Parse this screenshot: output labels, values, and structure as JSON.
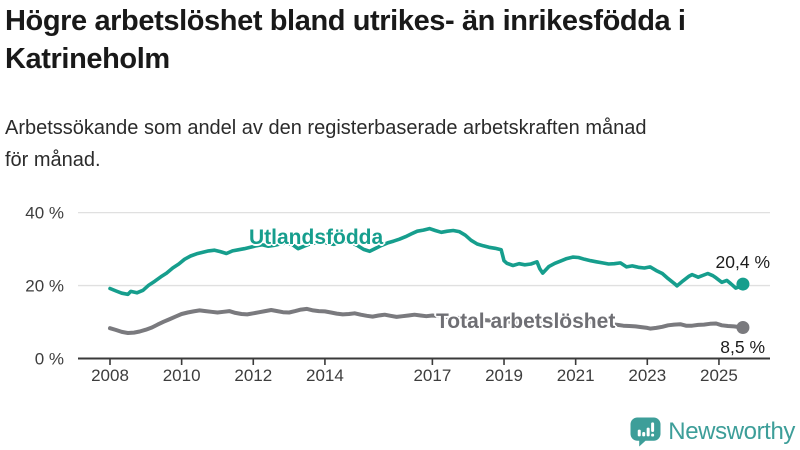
{
  "header": {
    "title": "Högre arbetslöshet bland utrikes- än inrikesfödda i Katrineholm",
    "subtitle": "Arbetssökande som andel av den registerbaserade arbetskraften månad för månad."
  },
  "footer": {
    "brand": "Newsworthy",
    "brand_color": "#3d9e99",
    "logo_icon": "newsworthy-chart-bubble-icon"
  },
  "chart_data": {
    "type": "line",
    "title": "Högre arbetslöshet bland utrikes- än inrikesfödda i Katrineholm",
    "xlabel": "",
    "ylabel": "",
    "grid": "horizontal-only",
    "xlim": [
      2008,
      2025.7
    ],
    "ylim": [
      0,
      46
    ],
    "x_ticks": [
      {
        "year": 2008,
        "label": "2008"
      },
      {
        "year": 2010,
        "label": "2010"
      },
      {
        "year": 2012,
        "label": "2012"
      },
      {
        "year": 2014,
        "label": "2014"
      },
      {
        "year": 2017,
        "label": "2017"
      },
      {
        "year": 2019,
        "label": "2019"
      },
      {
        "year": 2021,
        "label": "2021"
      },
      {
        "year": 2023,
        "label": "2023"
      },
      {
        "year": 2025,
        "label": "2025"
      }
    ],
    "y_ticks": [
      {
        "value": 0,
        "label": "0 %"
      },
      {
        "value": 20,
        "label": "20 %"
      },
      {
        "value": 40,
        "label": "40 %"
      }
    ],
    "axis_color": "#3a3a3a",
    "gridline_color": "#e0e0e0",
    "tick_label_color": "#3d3d3d",
    "series": [
      {
        "name": "Utlandsfödda",
        "color": "#169e8d",
        "end_label": "20,4 %",
        "end_value": 20.4,
        "points": [
          [
            2008.0,
            19.2
          ],
          [
            2008.17,
            18.5
          ],
          [
            2008.33,
            17.9
          ],
          [
            2008.5,
            17.6
          ],
          [
            2008.58,
            18.4
          ],
          [
            2008.75,
            18.0
          ],
          [
            2008.92,
            18.7
          ],
          [
            2009.08,
            20.1
          ],
          [
            2009.25,
            21.2
          ],
          [
            2009.42,
            22.4
          ],
          [
            2009.58,
            23.4
          ],
          [
            2009.75,
            24.8
          ],
          [
            2009.92,
            25.9
          ],
          [
            2010.08,
            27.2
          ],
          [
            2010.25,
            28.1
          ],
          [
            2010.42,
            28.7
          ],
          [
            2010.58,
            29.1
          ],
          [
            2010.75,
            29.5
          ],
          [
            2010.92,
            29.7
          ],
          [
            2011.08,
            29.3
          ],
          [
            2011.25,
            28.8
          ],
          [
            2011.42,
            29.5
          ],
          [
            2011.58,
            29.8
          ],
          [
            2011.75,
            30.1
          ],
          [
            2011.92,
            30.5
          ],
          [
            2012.08,
            30.9
          ],
          [
            2012.25,
            31.2
          ],
          [
            2012.42,
            30.8
          ],
          [
            2012.58,
            31.0
          ],
          [
            2012.75,
            31.4
          ],
          [
            2012.92,
            31.7
          ],
          [
            2013.08,
            31.3
          ],
          [
            2013.25,
            30.1
          ],
          [
            2013.42,
            30.8
          ],
          [
            2013.58,
            31.4
          ],
          [
            2013.75,
            31.8
          ],
          [
            2013.92,
            32.0
          ],
          [
            2014.08,
            31.6
          ],
          [
            2014.25,
            31.3
          ],
          [
            2014.42,
            31.9
          ],
          [
            2014.58,
            32.2
          ],
          [
            2014.75,
            31.7
          ],
          [
            2014.92,
            30.9
          ],
          [
            2015.08,
            29.9
          ],
          [
            2015.25,
            29.4
          ],
          [
            2015.42,
            30.2
          ],
          [
            2015.58,
            31.0
          ],
          [
            2015.75,
            31.7
          ],
          [
            2015.92,
            32.2
          ],
          [
            2016.08,
            32.7
          ],
          [
            2016.25,
            33.4
          ],
          [
            2016.42,
            34.2
          ],
          [
            2016.58,
            34.9
          ],
          [
            2016.75,
            35.2
          ],
          [
            2016.92,
            35.6
          ],
          [
            2017.08,
            35.1
          ],
          [
            2017.25,
            34.6
          ],
          [
            2017.42,
            34.9
          ],
          [
            2017.58,
            35.1
          ],
          [
            2017.75,
            34.8
          ],
          [
            2017.92,
            33.8
          ],
          [
            2018.08,
            32.4
          ],
          [
            2018.25,
            31.4
          ],
          [
            2018.42,
            30.9
          ],
          [
            2018.58,
            30.5
          ],
          [
            2018.75,
            30.2
          ],
          [
            2018.92,
            29.8
          ],
          [
            2019.0,
            26.8
          ],
          [
            2019.08,
            26.1
          ],
          [
            2019.25,
            25.5
          ],
          [
            2019.42,
            26.0
          ],
          [
            2019.58,
            25.7
          ],
          [
            2019.75,
            25.9
          ],
          [
            2019.92,
            26.5
          ],
          [
            2020.0,
            24.6
          ],
          [
            2020.08,
            23.4
          ],
          [
            2020.25,
            25.2
          ],
          [
            2020.42,
            26.1
          ],
          [
            2020.58,
            26.7
          ],
          [
            2020.75,
            27.4
          ],
          [
            2020.92,
            27.8
          ],
          [
            2021.08,
            27.7
          ],
          [
            2021.25,
            27.2
          ],
          [
            2021.42,
            26.8
          ],
          [
            2021.58,
            26.5
          ],
          [
            2021.75,
            26.2
          ],
          [
            2021.92,
            25.9
          ],
          [
            2022.08,
            26.0
          ],
          [
            2022.25,
            26.2
          ],
          [
            2022.42,
            25.1
          ],
          [
            2022.58,
            25.4
          ],
          [
            2022.75,
            25.0
          ],
          [
            2022.92,
            24.8
          ],
          [
            2023.08,
            25.1
          ],
          [
            2023.25,
            24.1
          ],
          [
            2023.42,
            23.3
          ],
          [
            2023.58,
            21.9
          ],
          [
            2023.75,
            20.6
          ],
          [
            2023.83,
            19.9
          ],
          [
            2024.0,
            21.3
          ],
          [
            2024.17,
            22.6
          ],
          [
            2024.25,
            23.0
          ],
          [
            2024.42,
            22.3
          ],
          [
            2024.58,
            22.9
          ],
          [
            2024.69,
            23.3
          ],
          [
            2024.83,
            22.7
          ],
          [
            2024.92,
            22.1
          ],
          [
            2025.08,
            20.9
          ],
          [
            2025.22,
            21.4
          ],
          [
            2025.33,
            20.5
          ],
          [
            2025.47,
            19.3
          ],
          [
            2025.58,
            19.7
          ],
          [
            2025.67,
            20.4
          ]
        ]
      },
      {
        "name": "Total arbetslöshet",
        "color": "#7a7a7e",
        "end_label": "8,5 %",
        "end_value": 8.5,
        "points": [
          [
            2008.0,
            8.3
          ],
          [
            2008.17,
            7.8
          ],
          [
            2008.33,
            7.3
          ],
          [
            2008.5,
            7.0
          ],
          [
            2008.67,
            7.1
          ],
          [
            2008.83,
            7.4
          ],
          [
            2009.0,
            7.9
          ],
          [
            2009.17,
            8.5
          ],
          [
            2009.33,
            9.3
          ],
          [
            2009.5,
            10.1
          ],
          [
            2009.67,
            10.8
          ],
          [
            2009.83,
            11.5
          ],
          [
            2010.0,
            12.2
          ],
          [
            2010.17,
            12.6
          ],
          [
            2010.33,
            12.9
          ],
          [
            2010.5,
            13.2
          ],
          [
            2010.67,
            13.0
          ],
          [
            2010.83,
            12.8
          ],
          [
            2011.0,
            12.6
          ],
          [
            2011.17,
            12.8
          ],
          [
            2011.33,
            13.0
          ],
          [
            2011.5,
            12.5
          ],
          [
            2011.67,
            12.2
          ],
          [
            2011.83,
            12.1
          ],
          [
            2012.0,
            12.4
          ],
          [
            2012.17,
            12.7
          ],
          [
            2012.33,
            13.0
          ],
          [
            2012.5,
            13.3
          ],
          [
            2012.67,
            13.0
          ],
          [
            2012.83,
            12.7
          ],
          [
            2013.0,
            12.6
          ],
          [
            2013.17,
            13.0
          ],
          [
            2013.33,
            13.4
          ],
          [
            2013.5,
            13.6
          ],
          [
            2013.67,
            13.2
          ],
          [
            2013.83,
            13.0
          ],
          [
            2014.0,
            12.9
          ],
          [
            2014.17,
            12.6
          ],
          [
            2014.33,
            12.3
          ],
          [
            2014.5,
            12.1
          ],
          [
            2014.67,
            12.2
          ],
          [
            2014.83,
            12.4
          ],
          [
            2015.0,
            12.0
          ],
          [
            2015.17,
            11.7
          ],
          [
            2015.33,
            11.5
          ],
          [
            2015.5,
            11.8
          ],
          [
            2015.67,
            12.0
          ],
          [
            2015.83,
            11.7
          ],
          [
            2016.0,
            11.4
          ],
          [
            2016.17,
            11.6
          ],
          [
            2016.33,
            11.8
          ],
          [
            2016.5,
            12.0
          ],
          [
            2016.67,
            11.8
          ],
          [
            2016.83,
            11.6
          ],
          [
            2017.0,
            11.8
          ],
          [
            2017.25,
            11.6
          ],
          [
            2017.5,
            11.3
          ],
          [
            2017.75,
            11.1
          ],
          [
            2018.0,
            10.9
          ],
          [
            2018.25,
            10.7
          ],
          [
            2018.5,
            10.5
          ],
          [
            2018.75,
            10.3
          ],
          [
            2019.0,
            10.2
          ],
          [
            2019.25,
            10.0
          ],
          [
            2019.5,
            9.9
          ],
          [
            2019.75,
            10.0
          ],
          [
            2020.0,
            10.3
          ],
          [
            2020.25,
            10.7
          ],
          [
            2020.5,
            10.9
          ],
          [
            2020.75,
            10.7
          ],
          [
            2021.0,
            10.4
          ],
          [
            2021.25,
            10.1
          ],
          [
            2021.5,
            9.9
          ],
          [
            2021.75,
            9.6
          ],
          [
            2022.0,
            9.4
          ],
          [
            2022.17,
            9.2
          ],
          [
            2022.33,
            9.0
          ],
          [
            2022.5,
            8.9
          ],
          [
            2022.67,
            8.8
          ],
          [
            2022.83,
            8.6
          ],
          [
            2023.0,
            8.4
          ],
          [
            2023.08,
            8.2
          ],
          [
            2023.25,
            8.4
          ],
          [
            2023.42,
            8.7
          ],
          [
            2023.58,
            9.1
          ],
          [
            2023.75,
            9.3
          ],
          [
            2023.92,
            9.4
          ],
          [
            2024.08,
            9.0
          ],
          [
            2024.25,
            9.0
          ],
          [
            2024.42,
            9.2
          ],
          [
            2024.58,
            9.3
          ],
          [
            2024.75,
            9.5
          ],
          [
            2024.92,
            9.6
          ],
          [
            2025.08,
            9.1
          ],
          [
            2025.25,
            8.9
          ],
          [
            2025.42,
            8.8
          ],
          [
            2025.58,
            8.6
          ],
          [
            2025.67,
            8.5
          ]
        ]
      }
    ]
  }
}
